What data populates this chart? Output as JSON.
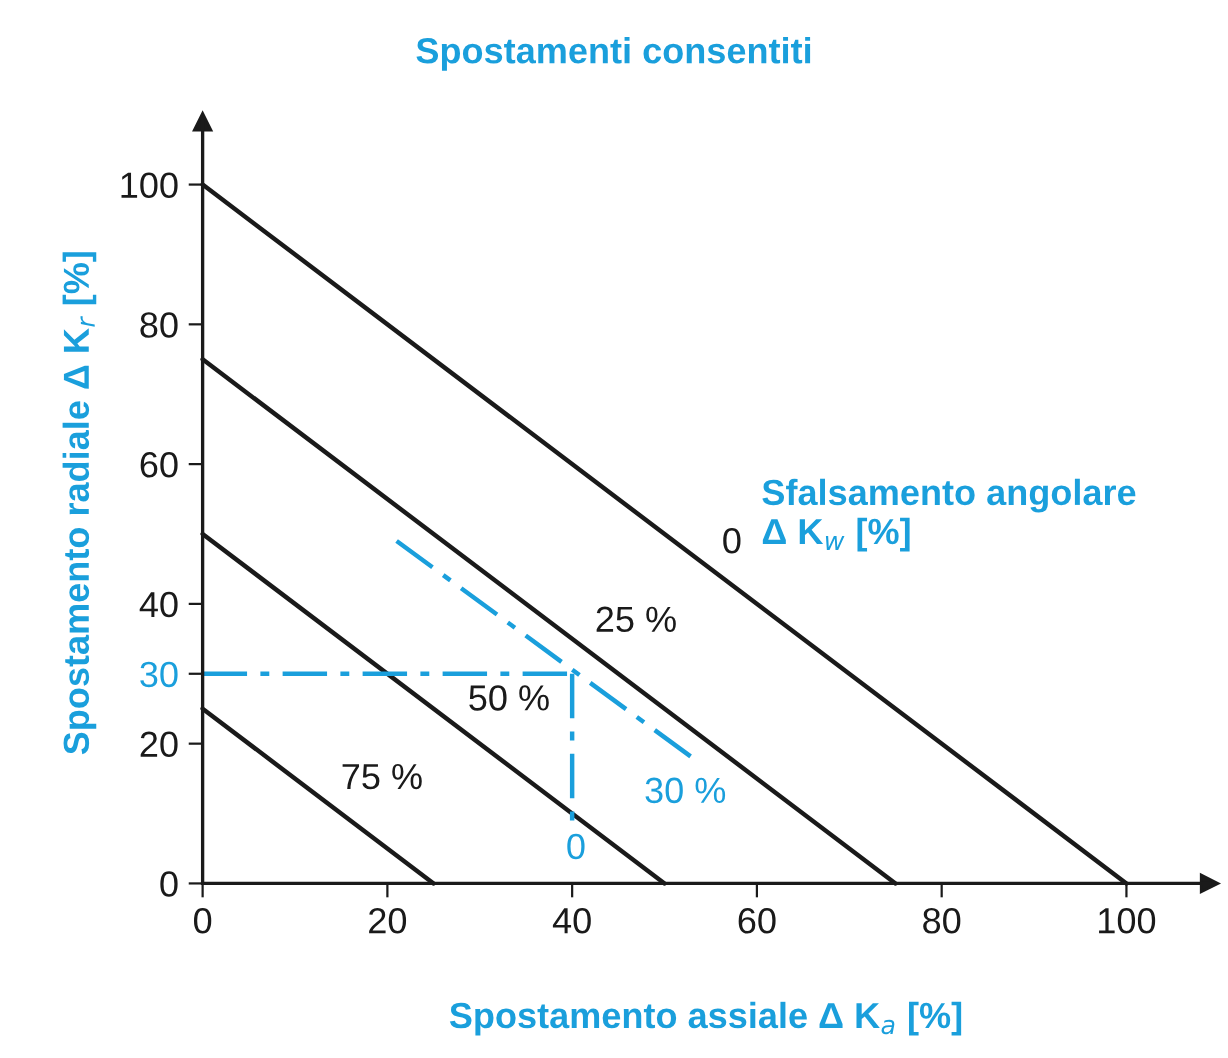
{
  "chart_data": {
    "type": "line",
    "title": "Spostamenti consentiti",
    "xlabel": "Spostamento assiale Δ K$_{a}$ [%]",
    "ylabel": "Spostamento radiale Δ K$_{r}$ [%]",
    "xlim": [
      0,
      109
    ],
    "ylim": [
      0,
      109
    ],
    "xticks": [
      0,
      20,
      40,
      60,
      80,
      100
    ],
    "yticks": [
      0,
      20,
      {
        "value": 30,
        "label": "30"
      },
      40,
      60,
      80,
      100
    ],
    "grid": false,
    "legend": false,
    "marker": "none",
    "series": [
      {
        "name": "0",
        "color": "#1a1a1a",
        "x": [
          0,
          100
        ],
        "values": [
          100,
          0
        ]
      },
      {
        "name": "25 %",
        "color": "#1a1a1a",
        "x": [
          0,
          75
        ],
        "values": [
          75,
          0
        ]
      },
      {
        "name": "50 %",
        "color": "#1a1a1a",
        "x": [
          0,
          50
        ],
        "values": [
          50,
          0
        ]
      },
      {
        "name": "75 %",
        "color": "#1a1a1a",
        "x": [
          0,
          25
        ],
        "values": [
          25,
          0
        ]
      },
      {
        "color": "#1a9fdc",
        "x": [
          0,
          40
        ],
        "values": [
          30,
          30
        ],
        "line_style": "dashed"
      },
      {
        "color": "#1a9fdc",
        "x": [
          40,
          40
        ],
        "values": [
          30,
          8
        ],
        "line_style": "dashed"
      },
      {
        "color": "#1a9fdc",
        "x": [
          21,
          53
        ],
        "values": [
          49,
          18
        ],
        "line_style": "dashed"
      }
    ],
    "annotations": [
      "Sfalsamento angolare\nΔ K$_{w}$ [%]",
      "30 %",
      "0"
    ]
  }
}
